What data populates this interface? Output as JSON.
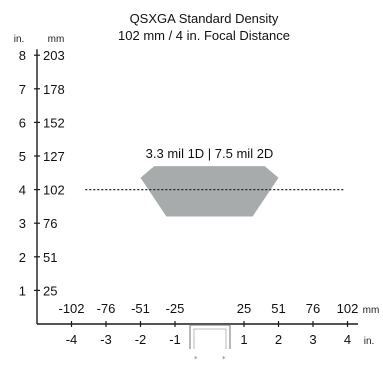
{
  "chart_data": {
    "type": "area",
    "title": "QSXGA Standard Density",
    "subtitle": "102 mm / 4 in. Focal Distance",
    "y_unit_inches": "in.",
    "y_unit_mm": "mm",
    "x_unit_mm": "mm",
    "x_unit_inches": "in.",
    "y_inches_ticks": [
      "1",
      "2",
      "3",
      "4",
      "5",
      "6",
      "7",
      "8"
    ],
    "y_mm_ticks": [
      "25",
      "51",
      "76",
      "102",
      "127",
      "152",
      "178",
      "203"
    ],
    "x_mm_ticks": [
      "-102",
      "-76",
      "-51",
      "-25",
      "25",
      "51",
      "76",
      "102"
    ],
    "x_inches_ticks": [
      "-4",
      "-3",
      "-2",
      "-1",
      "1",
      "2",
      "3",
      "4"
    ],
    "xlim_in": [
      -4,
      4
    ],
    "ylim_in": [
      0,
      8
    ],
    "focal_distance_in": 4,
    "read_zone_label": "3.3 mil 1D | 7.5 mil 2D",
    "read_zone_polygon_in": [
      {
        "x": -2.0,
        "y": 4.35
      },
      {
        "x": -1.6,
        "y": 4.7
      },
      {
        "x": 1.6,
        "y": 4.7
      },
      {
        "x": 2.0,
        "y": 4.35
      },
      {
        "x": 1.25,
        "y": 3.2
      },
      {
        "x": -1.25,
        "y": 3.2
      }
    ],
    "colors": {
      "zone_fill": "#a8abab",
      "axis": "#1a1a1a",
      "focal_line": "#222222",
      "device": "#888888"
    }
  }
}
